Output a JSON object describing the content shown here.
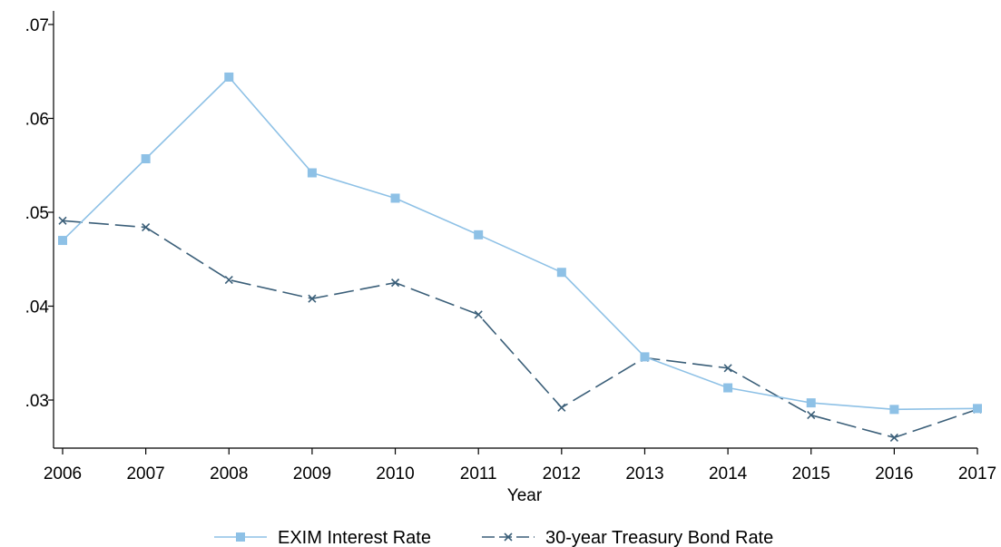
{
  "chart_data": {
    "type": "line",
    "title": "",
    "xlabel": "Year",
    "ylabel": "",
    "x": [
      2006,
      2007,
      2008,
      2009,
      2010,
      2011,
      2012,
      2013,
      2014,
      2015,
      2016,
      2017
    ],
    "xlim": [
      2006,
      2017
    ],
    "ylim": [
      0.0255,
      0.0715
    ],
    "x_ticks": [
      2006,
      2007,
      2008,
      2009,
      2010,
      2011,
      2012,
      2013,
      2014,
      2015,
      2016,
      2017
    ],
    "x_tick_labels": [
      "2006",
      "2007",
      "2008",
      "2009",
      "2010",
      "2011",
      "2012",
      "2013",
      "2014",
      "2015",
      "2016",
      "2017"
    ],
    "y_ticks": [
      0.03,
      0.04,
      0.05,
      0.06,
      0.07
    ],
    "y_tick_labels": [
      ".03",
      ".04",
      ".05",
      ".06",
      ".07"
    ],
    "grid": false,
    "legend_position": "bottom",
    "series": [
      {
        "name": "EXIM Interest Rate",
        "color": "#8ec1e6",
        "marker": "square",
        "line_style": "solid",
        "values": [
          0.047,
          0.0557,
          0.0644,
          0.0542,
          0.0515,
          0.0476,
          0.0436,
          0.0346,
          0.0313,
          0.0297,
          0.029,
          0.0291
        ]
      },
      {
        "name": "30-year Treasury Bond Rate",
        "color": "#3b5f79",
        "marker": "x",
        "line_style": "dashed",
        "values": [
          0.0491,
          0.0484,
          0.0428,
          0.0408,
          0.0425,
          0.0391,
          0.0292,
          0.0345,
          0.0334,
          0.0284,
          0.026,
          0.029
        ]
      }
    ]
  }
}
